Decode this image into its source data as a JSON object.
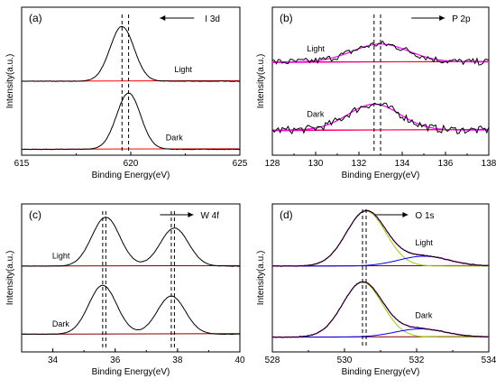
{
  "chart_data": [
    {
      "type": "line",
      "panel_label": "(a)",
      "core_level": "I 3d",
      "xlabel": "Binding Energy(eV)",
      "ylabel": "Intensity(a.u.)",
      "xlim": [
        615,
        625
      ],
      "x_ticks": [
        615,
        620,
        625
      ],
      "x_reversed": false,
      "arrow_direction": "left",
      "dashed_lines_x": [
        619.6,
        619.9
      ],
      "series": [
        {
          "name": "Light",
          "peaks": [
            {
              "center": 619.6,
              "height": 1.0,
              "width": 0.55
            }
          ]
        },
        {
          "name": "Dark",
          "peaks": [
            {
              "center": 619.9,
              "height": 1.0,
              "width": 0.55
            }
          ]
        }
      ]
    },
    {
      "type": "line",
      "panel_label": "(b)",
      "core_level": "P 2p",
      "xlabel": "Binding Energy(eV)",
      "ylabel": "Intensity(a.u.)",
      "xlim": [
        128,
        138
      ],
      "x_ticks": [
        128,
        130,
        132,
        134,
        136,
        138
      ],
      "x_reversed": false,
      "arrow_direction": "right",
      "dashed_lines_x": [
        132.7,
        133.0
      ],
      "series": [
        {
          "name": "Light",
          "peaks": [
            {
              "center": 133.0,
              "height": 0.55,
              "width": 1.3
            }
          ]
        },
        {
          "name": "Dark",
          "peaks": [
            {
              "center": 132.7,
              "height": 0.7,
              "width": 1.2
            }
          ]
        }
      ]
    },
    {
      "type": "line",
      "panel_label": "(c)",
      "core_level": "W 4f",
      "xlabel": "Binding Energy(eV)",
      "ylabel": "Intensity(a.u.)",
      "xlim": [
        33,
        40
      ],
      "x_ticks": [
        34,
        36,
        38,
        40
      ],
      "x_reversed": false,
      "arrow_direction": "right",
      "dashed_lines_x": [
        35.6,
        35.7,
        37.8,
        37.9
      ],
      "series": [
        {
          "name": "Light",
          "peaks": [
            {
              "center": 35.7,
              "height": 1.0,
              "width": 0.45
            },
            {
              "center": 37.9,
              "height": 0.78,
              "width": 0.45
            }
          ]
        },
        {
          "name": "Dark",
          "peaks": [
            {
              "center": 35.6,
              "height": 1.0,
              "width": 0.45
            },
            {
              "center": 37.8,
              "height": 0.78,
              "width": 0.45
            }
          ]
        }
      ]
    },
    {
      "type": "line",
      "panel_label": "(d)",
      "core_level": "O 1s",
      "xlabel": "Binding Energy(eV)",
      "ylabel": "Intensity(a.u.)",
      "xlim": [
        528,
        534
      ],
      "x_ticks": [
        528,
        530,
        532,
        534
      ],
      "x_reversed": false,
      "arrow_direction": "right",
      "dashed_lines_x": [
        530.5,
        530.6
      ],
      "series": [
        {
          "name": "Light",
          "peaks": [
            {
              "center": 530.6,
              "height": 1.0,
              "width": 0.55
            },
            {
              "center": 532.2,
              "height": 0.18,
              "width": 0.7
            }
          ]
        },
        {
          "name": "Dark",
          "peaks": [
            {
              "center": 530.5,
              "height": 1.0,
              "width": 0.55
            },
            {
              "center": 532.1,
              "height": 0.15,
              "width": 0.7
            }
          ]
        }
      ]
    }
  ],
  "colors": {
    "data": "#000000",
    "baseline": "#ff0000",
    "envelope": "#ff00ff",
    "component_main": "#99cc00",
    "component_secondary": "#0000ff",
    "background_line": "#800000"
  }
}
